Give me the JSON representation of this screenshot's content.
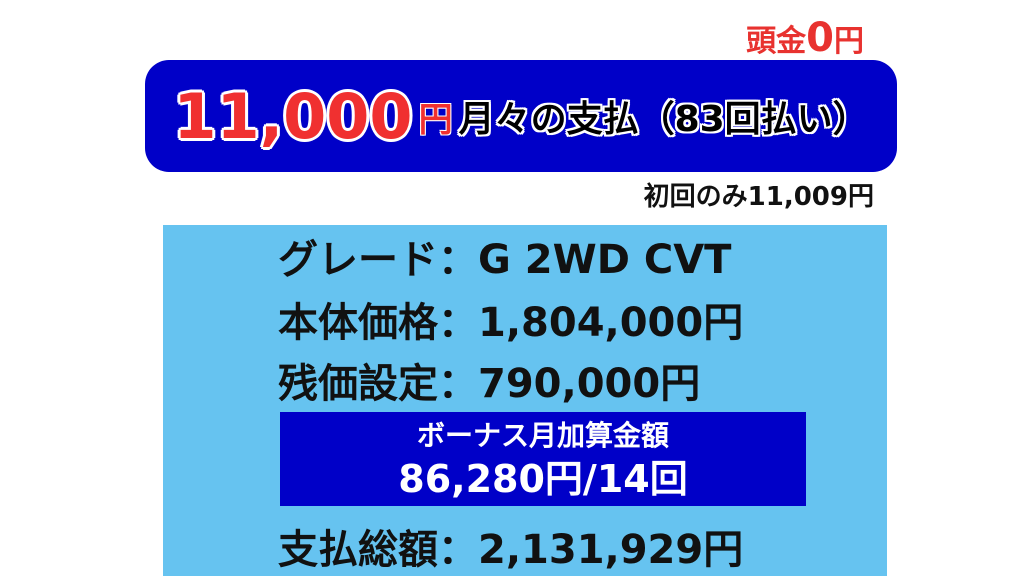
{
  "down_payment": {
    "label": "頭金",
    "value": "0",
    "unit": "円"
  },
  "banner": {
    "amount": "11,000",
    "unit": "円",
    "text": "月々の支払（83回払い）"
  },
  "first_payment": "初回のみ11,009円",
  "details": [
    {
      "label": "グレード",
      "value": "G 2WD CVT"
    },
    {
      "label": "本体価格",
      "value": "1,804,000円"
    },
    {
      "label": "残価設定",
      "value": "790,000円"
    }
  ],
  "bonus": {
    "title": "ボーナス月加算金額",
    "value": "86,280円/14回"
  },
  "total": {
    "label": "支払総額",
    "value": "2,131,929円"
  },
  "separator": "：",
  "colors": {
    "banner": "#0000c8",
    "panel": "#66c3f0",
    "accent": "#f03030"
  }
}
